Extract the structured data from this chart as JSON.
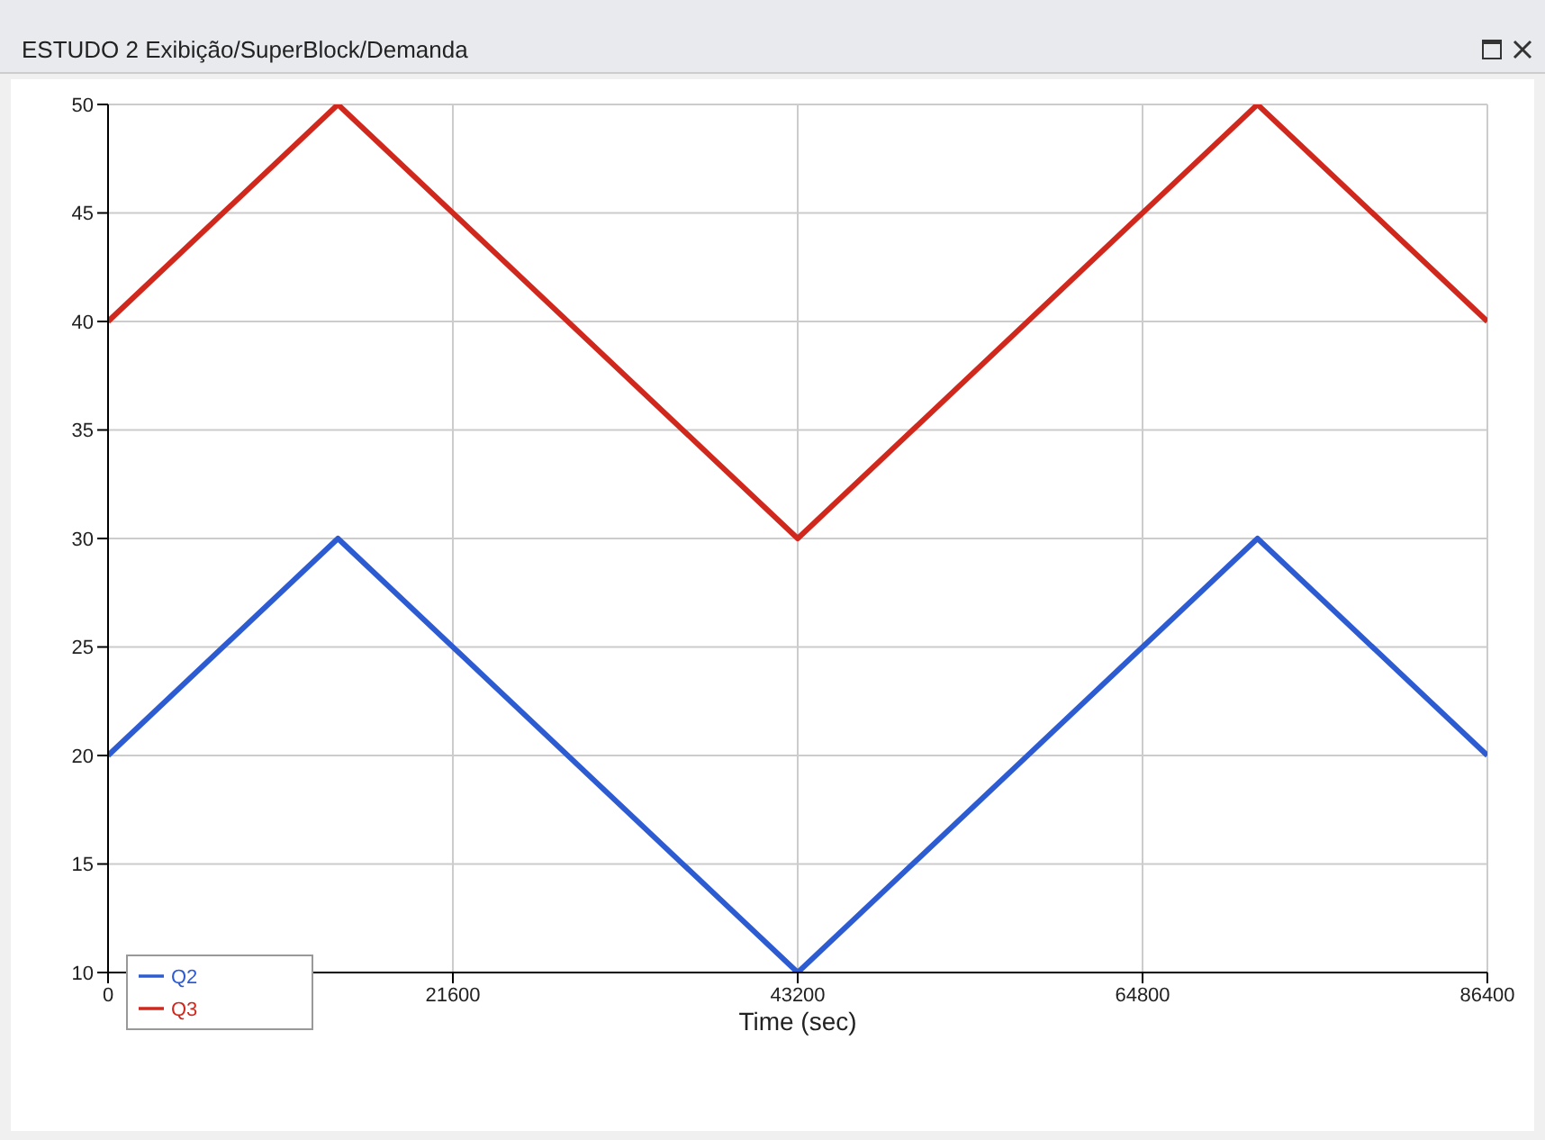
{
  "chart_data": {
    "type": "line",
    "title": "ESTUDO 2 Exibição/SuperBlock/Demanda",
    "xlabel": "Time (sec)",
    "x": [
      0,
      14400,
      43200,
      72000,
      86400
    ],
    "series": [
      {
        "name": "Q2",
        "color": "#2d5bd2",
        "values": [
          20,
          30,
          10,
          30,
          20
        ]
      },
      {
        "name": "Q3",
        "color": "#d0281c",
        "values": [
          40,
          50,
          30,
          50,
          40
        ]
      }
    ],
    "xlim": [
      0,
      86400
    ],
    "xticks": [
      0,
      21600,
      43200,
      64800,
      86400
    ],
    "ylim": [
      10,
      50
    ],
    "yticks": [
      10,
      15,
      20,
      25,
      30,
      35,
      40,
      45,
      50
    ],
    "grid": true,
    "legend": "bottom left"
  }
}
